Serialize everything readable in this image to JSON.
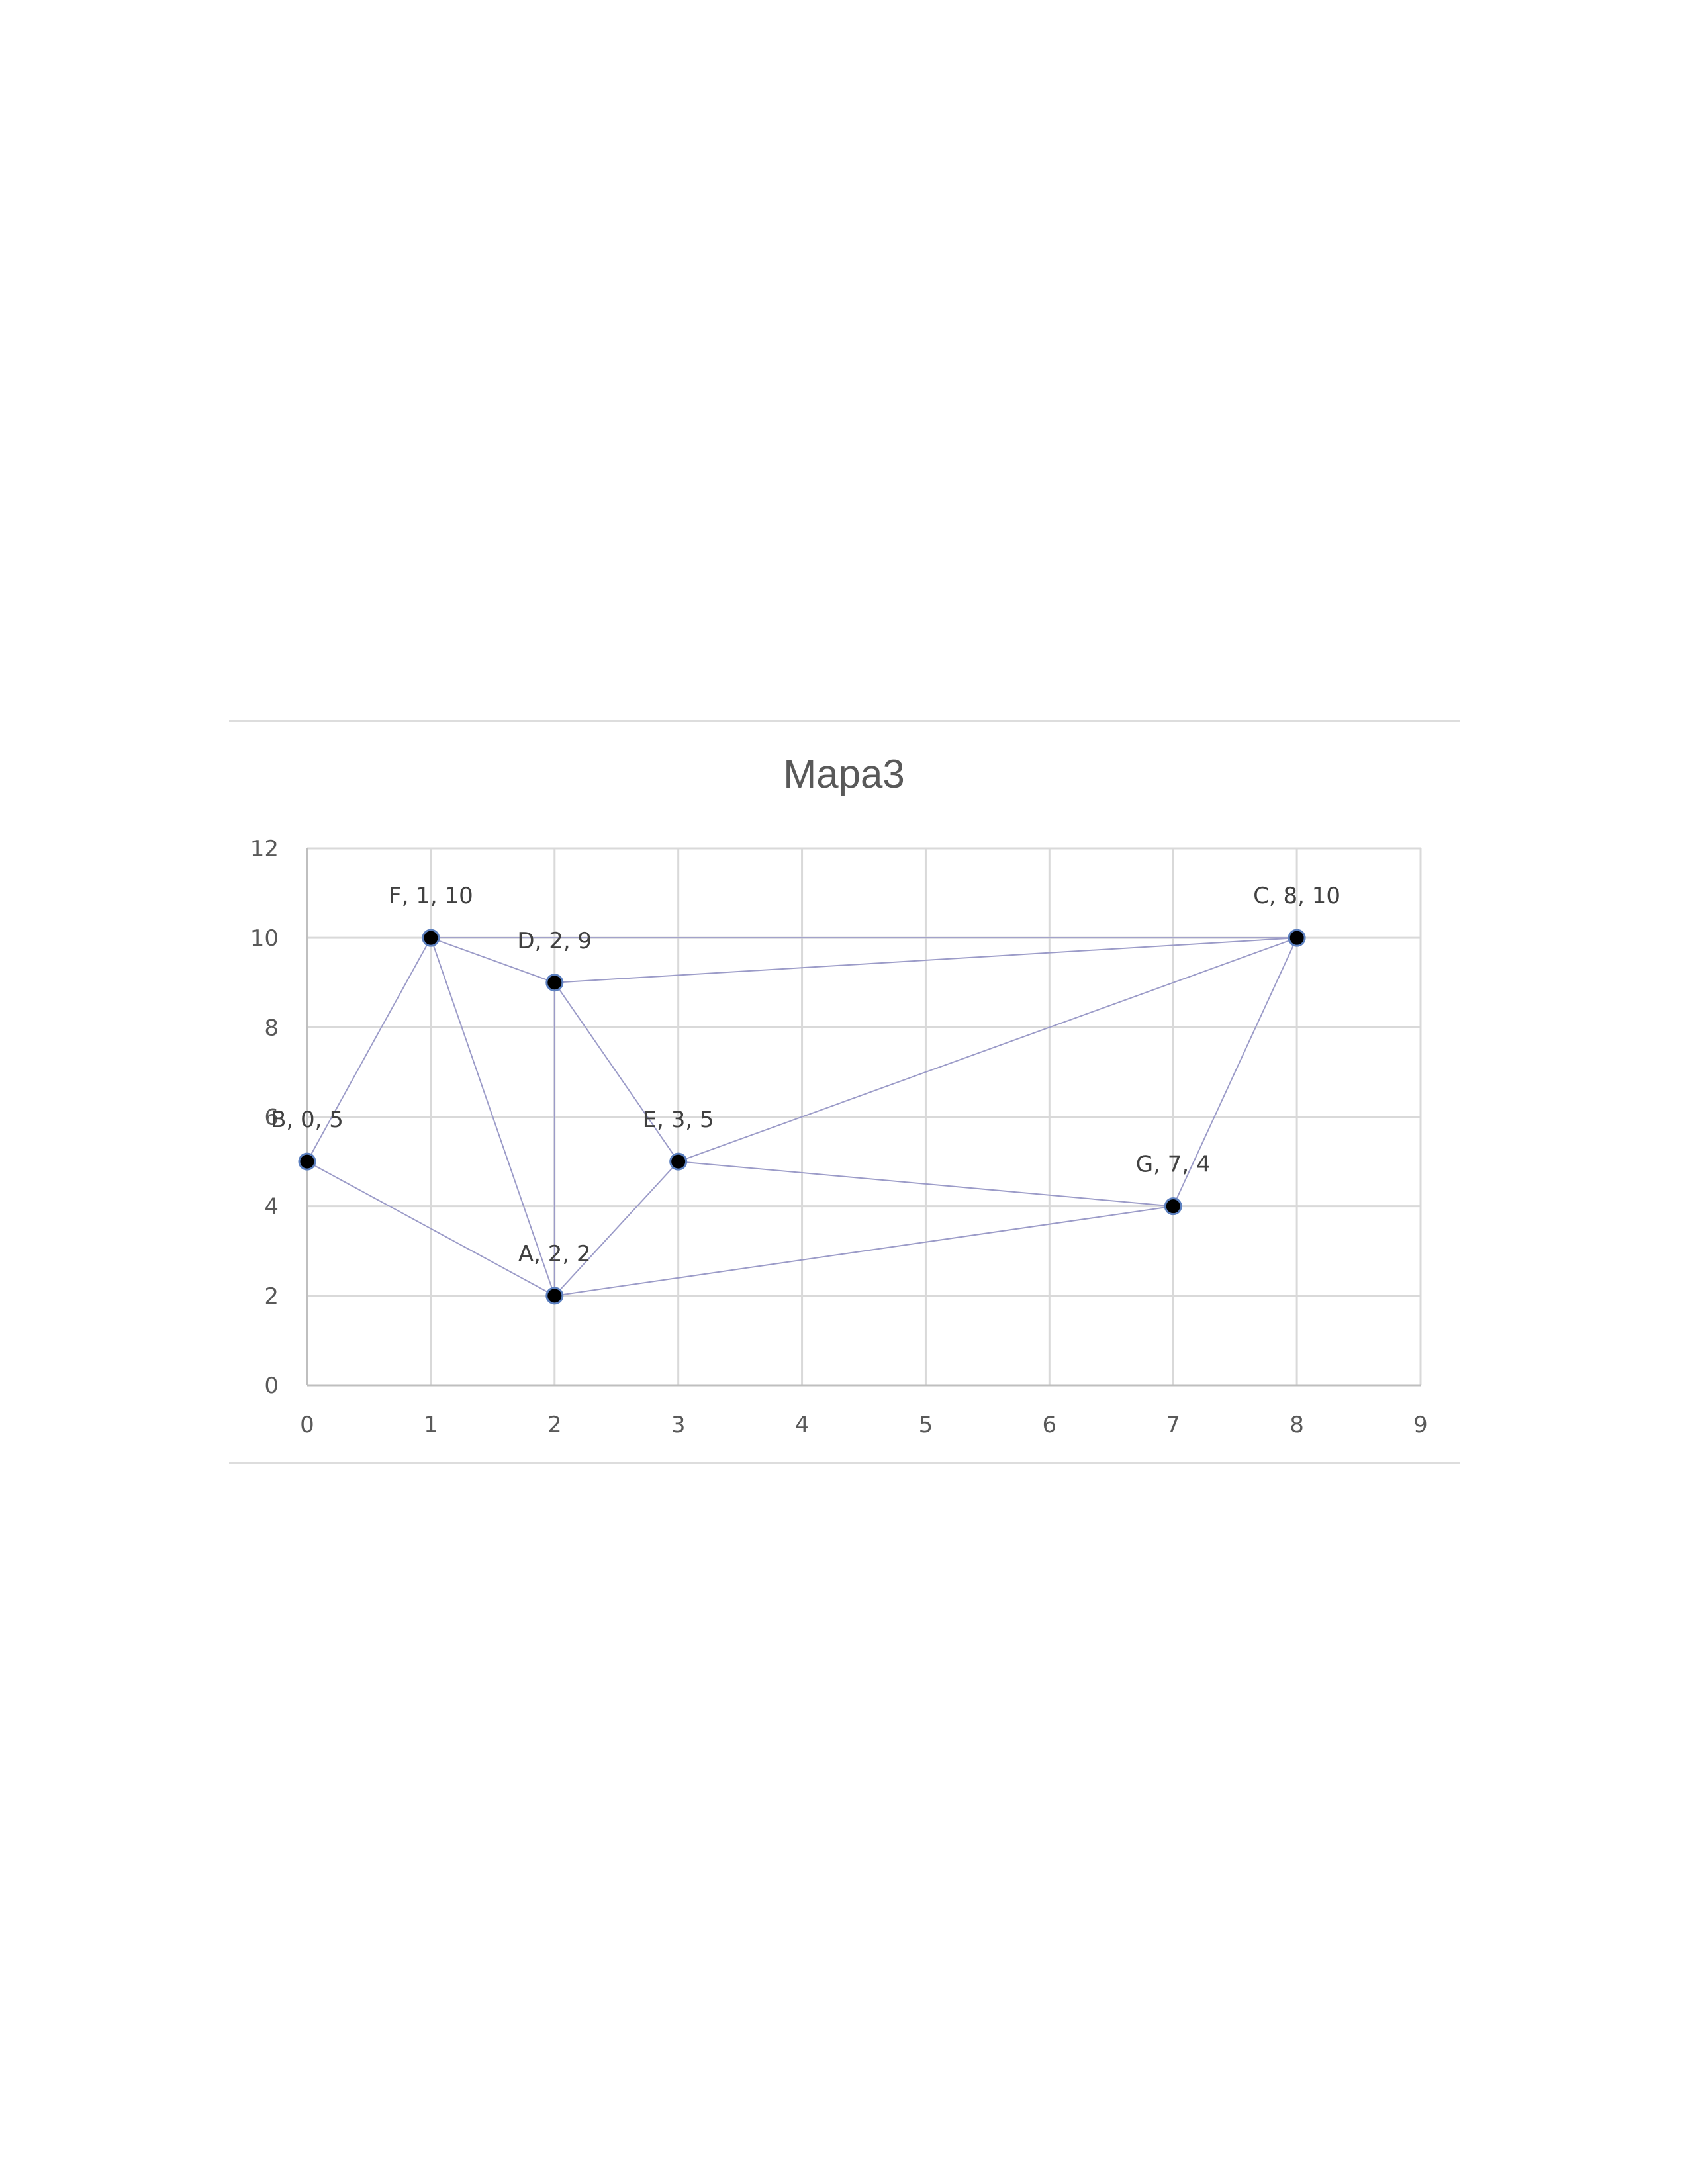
{
  "chart_data": {
    "type": "scatter",
    "title": "Mapa3",
    "xlabel": "",
    "ylabel": "",
    "xlim": [
      0,
      9
    ],
    "ylim": [
      0,
      12
    ],
    "x_ticks": [
      0,
      1,
      2,
      3,
      4,
      5,
      6,
      7,
      8,
      9
    ],
    "y_ticks": [
      0,
      2,
      4,
      6,
      8,
      10,
      12
    ],
    "grid": true,
    "legend": "none",
    "colors": {
      "marker_fill": "#000000",
      "marker_edge": "#5b7fbf",
      "edge_line": "#9b9bc8",
      "grid": "#d9d9d9",
      "text": "#595959"
    },
    "points": [
      {
        "name": "A",
        "x": 2,
        "y": 2,
        "label": "A, 2, 2"
      },
      {
        "name": "B",
        "x": 0,
        "y": 5,
        "label": "B, 0, 5"
      },
      {
        "name": "C",
        "x": 8,
        "y": 10,
        "label": "C, 8, 10"
      },
      {
        "name": "D",
        "x": 2,
        "y": 9,
        "label": "D, 2, 9"
      },
      {
        "name": "E",
        "x": 3,
        "y": 5,
        "label": "E, 3, 5"
      },
      {
        "name": "F",
        "x": 1,
        "y": 10,
        "label": "F, 1, 10"
      },
      {
        "name": "G",
        "x": 7,
        "y": 4,
        "label": "G, 7, 4"
      }
    ],
    "edges": [
      [
        "B",
        "F"
      ],
      [
        "B",
        "A"
      ],
      [
        "F",
        "D"
      ],
      [
        "F",
        "C"
      ],
      [
        "F",
        "A"
      ],
      [
        "D",
        "C"
      ],
      [
        "D",
        "A"
      ],
      [
        "D",
        "E"
      ],
      [
        "A",
        "E"
      ],
      [
        "A",
        "G"
      ],
      [
        "E",
        "C"
      ],
      [
        "E",
        "G"
      ],
      [
        "G",
        "C"
      ]
    ]
  }
}
